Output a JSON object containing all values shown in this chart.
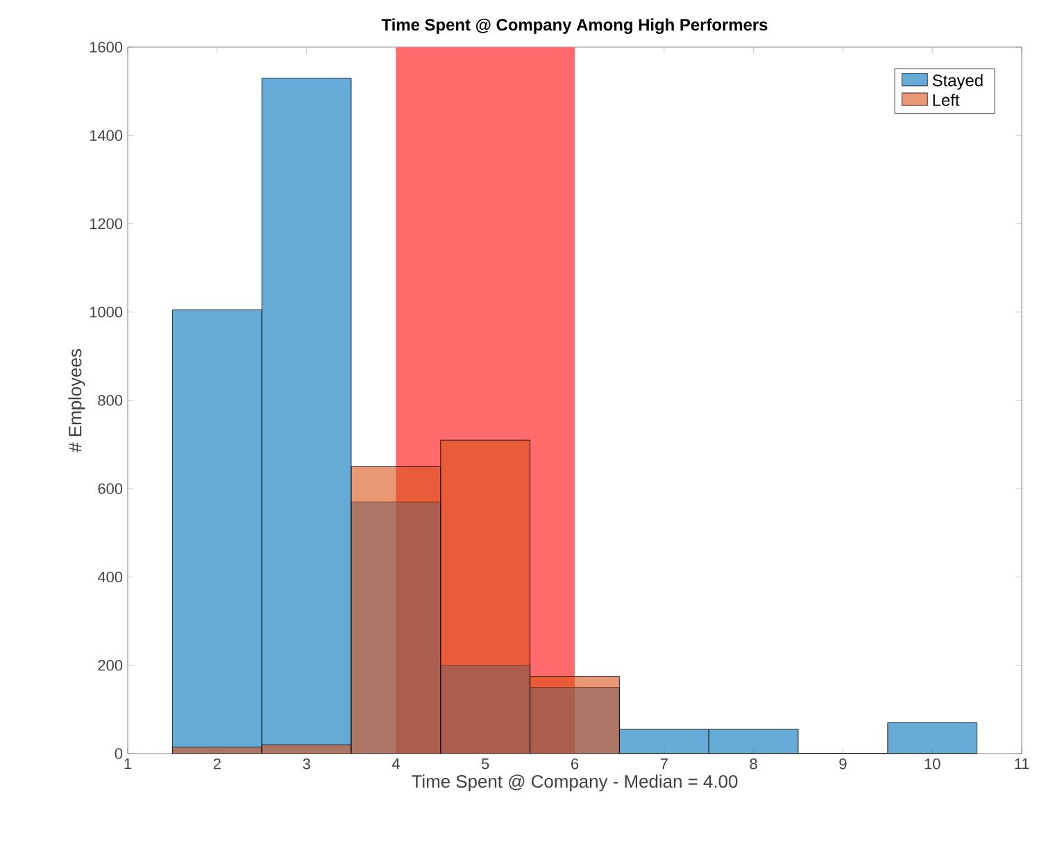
{
  "chart_data": {
    "type": "histogram",
    "title": "Time Spent @ Company Among High Performers",
    "xlabel": "Time Spent @ Company - Median = 4.00",
    "ylabel": "# Employees",
    "bins": [
      1.5,
      2.5,
      3.5,
      4.5,
      5.5,
      6.5,
      7.5,
      8.5,
      9.5,
      10.5
    ],
    "series": [
      {
        "name": "Stayed",
        "color": "#0072bd",
        "values": [
          1005,
          1530,
          570,
          200,
          150,
          55,
          55,
          0,
          70
        ]
      },
      {
        "name": "Left",
        "color": "#d95319",
        "values": [
          15,
          20,
          650,
          710,
          175,
          0,
          0,
          0,
          0
        ]
      }
    ],
    "bands": [
      {
        "axis": "x",
        "from": 4,
        "to": 6,
        "color": "#ff6a6a"
      }
    ],
    "xlim": [
      1,
      11
    ],
    "xticks": [
      1,
      2,
      3,
      4,
      5,
      6,
      7,
      8,
      9,
      10,
      11
    ],
    "ylim": [
      0,
      1600
    ],
    "yticks": [
      0,
      200,
      400,
      600,
      800,
      1000,
      1200,
      1400,
      1600
    ],
    "grid": false,
    "legend": "top right"
  }
}
